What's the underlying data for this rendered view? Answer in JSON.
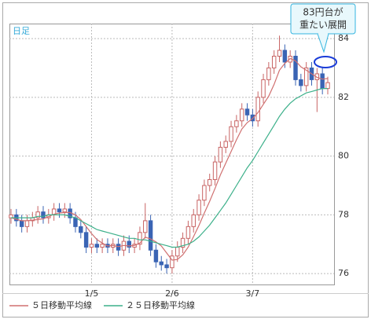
{
  "chart_data": {
    "type": "candlestick",
    "period_label": "日足",
    "annotation": [
      "83円台が",
      "重たい展開"
    ],
    "categories": [
      null,
      null,
      null,
      null,
      null,
      null,
      null,
      null,
      null,
      null,
      null,
      null,
      null,
      null,
      null,
      "1/5",
      null,
      null,
      null,
      null,
      null,
      null,
      null,
      null,
      null,
      null,
      null,
      null,
      null,
      null,
      "2/6",
      null,
      null,
      null,
      null,
      null,
      null,
      null,
      null,
      null,
      null,
      null,
      null,
      null,
      null,
      "3/7",
      null,
      null,
      null,
      null,
      null,
      null,
      null,
      null,
      null,
      null,
      null,
      null,
      null,
      null
    ],
    "open": [
      77.9,
      78.0,
      77.8,
      77.6,
      77.8,
      77.9,
      78.1,
      77.9,
      78.0,
      78.2,
      78.1,
      78.2,
      77.9,
      77.6,
      77.4,
      76.9,
      77.0,
      76.9,
      77.0,
      76.9,
      77.0,
      76.8,
      77.1,
      76.9,
      77.0,
      77.4,
      77.8,
      76.8,
      76.4,
      76.3,
      76.2,
      76.6,
      76.9,
      77.2,
      77.6,
      78.0,
      78.5,
      79.0,
      79.2,
      79.8,
      80.3,
      80.5,
      81.0,
      81.2,
      81.6,
      81.4,
      81.2,
      82.0,
      82.6,
      83.0,
      83.4,
      83.6,
      83.2,
      83.4,
      82.6,
      82.4,
      83.0,
      82.6,
      82.8,
      82.3
    ],
    "high": [
      78.2,
      78.2,
      78.0,
      78.0,
      78.1,
      78.3,
      78.3,
      78.2,
      78.4,
      78.4,
      78.4,
      78.4,
      78.1,
      77.8,
      77.6,
      77.2,
      77.2,
      77.2,
      77.2,
      77.2,
      77.2,
      77.3,
      77.3,
      77.2,
      77.6,
      78.4,
      78.0,
      77.0,
      76.6,
      76.5,
      76.8,
      77.1,
      77.4,
      77.8,
      78.2,
      78.7,
      79.2,
      79.4,
      80.0,
      80.5,
      80.7,
      81.2,
      81.4,
      81.8,
      81.8,
      81.6,
      82.2,
      82.8,
      83.2,
      83.6,
      84.1,
      83.8,
      83.6,
      83.6,
      82.8,
      83.2,
      83.2,
      83.0,
      83.0,
      82.7
    ],
    "low": [
      77.7,
      77.6,
      77.4,
      77.4,
      77.6,
      77.7,
      77.7,
      77.7,
      77.8,
      77.9,
      77.9,
      77.7,
      77.4,
      77.2,
      76.7,
      76.7,
      76.7,
      76.7,
      76.7,
      76.7,
      76.6,
      76.6,
      76.7,
      76.7,
      76.8,
      77.2,
      76.6,
      76.2,
      76.1,
      76.0,
      76.0,
      76.4,
      76.7,
      77.0,
      77.4,
      77.8,
      78.3,
      78.8,
      79.0,
      79.6,
      80.1,
      80.3,
      80.8,
      81.0,
      81.2,
      81.0,
      81.0,
      81.8,
      82.4,
      82.8,
      83.2,
      83.0,
      83.0,
      82.4,
      82.2,
      82.2,
      82.4,
      81.5,
      82.1,
      82.1
    ],
    "close": [
      78.0,
      77.8,
      77.6,
      77.8,
      77.9,
      78.1,
      77.9,
      78.0,
      78.2,
      78.1,
      78.2,
      77.9,
      77.6,
      77.4,
      76.9,
      77.0,
      76.9,
      77.0,
      76.9,
      77.0,
      76.8,
      77.1,
      76.9,
      77.0,
      77.4,
      77.8,
      76.8,
      76.4,
      76.3,
      76.2,
      76.6,
      76.9,
      77.2,
      77.6,
      78.0,
      78.5,
      79.0,
      79.2,
      79.8,
      80.3,
      80.5,
      81.0,
      81.2,
      81.6,
      81.4,
      81.2,
      82.0,
      82.6,
      83.0,
      83.4,
      83.6,
      83.2,
      83.4,
      82.6,
      82.4,
      83.0,
      82.6,
      82.8,
      82.3,
      82.5
    ],
    "up_color": "#c86464",
    "down_color": "#3a64b4",
    "series": [
      {
        "name": "５日移動平均線",
        "color": "#d07070",
        "values": [
          77.9,
          77.85,
          77.8,
          77.8,
          77.82,
          77.84,
          77.86,
          77.94,
          78.02,
          78.06,
          78.08,
          78.08,
          78.0,
          77.84,
          77.6,
          77.36,
          77.16,
          77.04,
          76.94,
          76.96,
          76.92,
          76.96,
          76.94,
          76.96,
          77.04,
          77.24,
          77.18,
          77.08,
          76.94,
          76.7,
          76.46,
          76.48,
          76.64,
          76.9,
          77.26,
          77.64,
          78.06,
          78.46,
          78.9,
          79.36,
          79.76,
          80.16,
          80.56,
          80.92,
          81.14,
          81.28,
          81.48,
          81.76,
          82.04,
          82.44,
          82.92,
          83.16,
          83.32,
          83.24,
          83.04,
          82.92,
          82.8,
          82.68,
          82.62,
          82.64
        ]
      },
      {
        "name": "２５日移動平均線",
        "color": "#3cb08a",
        "values": [
          77.9,
          77.9,
          77.9,
          77.9,
          77.9,
          77.95,
          77.95,
          78.0,
          78.0,
          78.0,
          78.0,
          77.95,
          77.9,
          77.8,
          77.7,
          77.6,
          77.5,
          77.45,
          77.4,
          77.35,
          77.3,
          77.25,
          77.2,
          77.2,
          77.15,
          77.15,
          77.1,
          77.05,
          77.0,
          76.95,
          76.9,
          76.9,
          76.95,
          77.0,
          77.1,
          77.25,
          77.45,
          77.65,
          77.9,
          78.15,
          78.4,
          78.7,
          79.0,
          79.3,
          79.6,
          79.85,
          80.15,
          80.45,
          80.75,
          81.05,
          81.35,
          81.6,
          81.8,
          81.95,
          82.05,
          82.15,
          82.2,
          82.25,
          82.3,
          82.3
        ]
      }
    ],
    "ylim": [
      75.63,
      84.51
    ],
    "yticks": [
      76,
      78,
      80,
      82,
      84
    ],
    "grid": true
  }
}
